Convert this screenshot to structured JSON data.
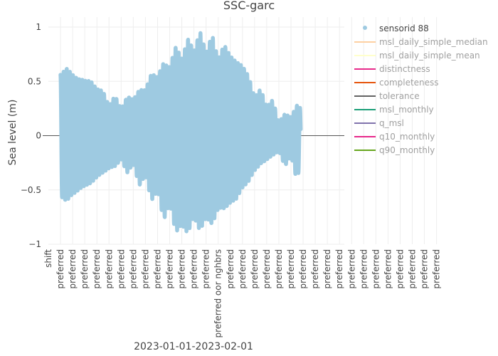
{
  "chart_data": {
    "type": "line",
    "title": "SSC-garc",
    "ylabel": "Sea level (m)",
    "xlabel": "2023-01-01-2023-02-01",
    "ylim": [
      -1,
      1
    ],
    "y_ticks": [
      {
        "value": 1,
        "label": "1"
      },
      {
        "value": 0.5,
        "label": "0.5"
      },
      {
        "value": 0,
        "label": "0"
      },
      {
        "value": -0.5,
        "label": "−0.5"
      },
      {
        "value": -1,
        "label": "−1"
      }
    ],
    "x_tick_labels": [
      "shift",
      "preferred",
      "preferred",
      "preferred",
      "preferred",
      "preferred",
      "preferred",
      "preferred",
      "preferred",
      "preferred",
      "preferred",
      "preferred",
      "preferred",
      "preferred",
      "preferred oor nghbrs",
      "preferred",
      "preferred",
      "preferred",
      "preferred",
      "preferred",
      "preferred",
      "preferred",
      "preferred",
      "preferred",
      "preferred",
      "preferred",
      "preferred",
      "preferred",
      "preferred",
      "preferred",
      "preferred",
      "preferred",
      "preferred"
    ],
    "grid": true,
    "legend_position": "right",
    "series": [
      {
        "name": "sensorid 88",
        "color": "#9ecae1",
        "visible": true,
        "envelope": [
          {
            "x": 0.0,
            "high": 0.56,
            "low": -0.56
          },
          {
            "x": 0.5,
            "high": 0.62,
            "low": -0.6
          },
          {
            "x": 1.0,
            "high": 0.56,
            "low": -0.54
          },
          {
            "x": 1.5,
            "high": 0.52,
            "low": -0.5
          },
          {
            "x": 2.0,
            "high": 0.51,
            "low": -0.46
          },
          {
            "x": 2.5,
            "high": 0.5,
            "low": -0.44
          },
          {
            "x": 3.0,
            "high": 0.43,
            "low": -0.38
          },
          {
            "x": 3.5,
            "high": 0.41,
            "low": -0.34
          },
          {
            "x": 4.0,
            "high": 0.27,
            "low": -0.3
          },
          {
            "x": 4.5,
            "high": 0.37,
            "low": -0.28
          },
          {
            "x": 5.0,
            "high": 0.24,
            "low": -0.22
          },
          {
            "x": 5.5,
            "high": 0.36,
            "low": -0.34
          },
          {
            "x": 6.0,
            "high": 0.33,
            "low": -0.26
          },
          {
            "x": 6.5,
            "high": 0.42,
            "low": -0.46
          },
          {
            "x": 7.0,
            "high": 0.42,
            "low": -0.36
          },
          {
            "x": 7.5,
            "high": 0.57,
            "low": -0.6
          },
          {
            "x": 8.0,
            "high": 0.54,
            "low": -0.5
          },
          {
            "x": 8.5,
            "high": 0.67,
            "low": -0.78
          },
          {
            "x": 9.0,
            "high": 0.63,
            "low": -0.62
          },
          {
            "x": 9.5,
            "high": 0.82,
            "low": -0.89
          },
          {
            "x": 10.0,
            "high": 0.71,
            "low": -0.82
          },
          {
            "x": 10.5,
            "high": 0.89,
            "low": -0.9
          },
          {
            "x": 11.0,
            "high": 0.78,
            "low": -0.74
          },
          {
            "x": 11.5,
            "high": 0.96,
            "low": -0.88
          },
          {
            "x": 12.0,
            "high": 0.76,
            "low": -0.75
          },
          {
            "x": 12.5,
            "high": 0.93,
            "low": -0.82
          },
          {
            "x": 13.0,
            "high": 0.7,
            "low": -0.67
          },
          {
            "x": 13.5,
            "high": 0.84,
            "low": -0.67
          },
          {
            "x": 14.0,
            "high": 0.73,
            "low": -0.62
          },
          {
            "x": 14.5,
            "high": 0.68,
            "low": -0.58
          },
          {
            "x": 15.0,
            "high": 0.64,
            "low": -0.48
          },
          {
            "x": 15.5,
            "high": 0.55,
            "low": -0.42
          },
          {
            "x": 16.0,
            "high": 0.35,
            "low": -0.32
          },
          {
            "x": 16.5,
            "high": 0.43,
            "low": -0.26
          },
          {
            "x": 17.0,
            "high": 0.26,
            "low": -0.22
          },
          {
            "x": 17.5,
            "high": 0.33,
            "low": -0.18
          },
          {
            "x": 18.0,
            "high": 0.12,
            "low": -0.14
          },
          {
            "x": 18.5,
            "high": 0.2,
            "low": -0.28
          },
          {
            "x": 19.0,
            "high": 0.17,
            "low": -0.18
          },
          {
            "x": 19.5,
            "high": 0.28,
            "low": -0.42
          },
          {
            "x": 19.8,
            "high": 0.25,
            "low": -0.22
          }
        ]
      },
      {
        "name": "msl_daily_simple_median",
        "color": "#fdd0a2",
        "visible": false
      },
      {
        "name": "msl_daily_simple_mean",
        "color": "#ffffcc",
        "visible": false
      },
      {
        "name": "distinctness",
        "color": "#e7298a",
        "visible": false
      },
      {
        "name": "completeness",
        "color": "#e6550d",
        "visible": false
      },
      {
        "name": "tolerance",
        "color": "#636363",
        "visible": false
      },
      {
        "name": "msl_monthly",
        "color": "#1b9e77",
        "visible": false
      },
      {
        "name": "q_msl",
        "color": "#8073ac",
        "visible": false
      },
      {
        "name": "q10_monthly",
        "color": "#e7298a",
        "visible": false
      },
      {
        "name": "q90_monthly",
        "color": "#66a61e",
        "visible": false
      }
    ]
  }
}
